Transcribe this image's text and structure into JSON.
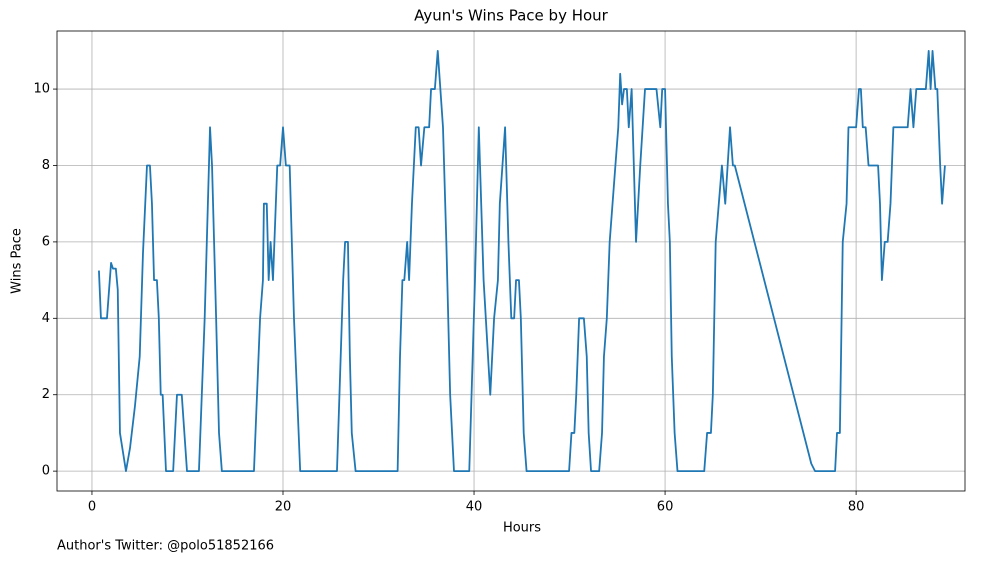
{
  "chart_data": {
    "type": "line",
    "title": "Ayun's Wins Pace by Hour",
    "xlabel": "Hours",
    "ylabel": "Wins Pace",
    "annotation": "Author's Twitter: @polo51852166",
    "color": "#1f77b4",
    "grid": true,
    "xlim": [
      -3.66,
      91.4
    ],
    "ylim": [
      -0.52,
      11.52
    ],
    "xticks": [
      0,
      20,
      40,
      60,
      80
    ],
    "yticks": [
      0,
      2,
      4,
      6,
      8,
      10
    ],
    "x": [
      0.73,
      0.94,
      1.57,
      2.0,
      2.2,
      2.5,
      2.7,
      2.93,
      3.56,
      3.98,
      4.5,
      5.0,
      5.34,
      5.76,
      6.07,
      6.28,
      6.5,
      6.8,
      7.0,
      7.2,
      7.4,
      7.75,
      8.5,
      8.9,
      9.4,
      9.95,
      11.2,
      11.8,
      12.36,
      12.57,
      13.0,
      13.3,
      13.6,
      16.96,
      17.6,
      17.9,
      18.0,
      18.3,
      18.5,
      18.7,
      18.95,
      19.4,
      19.7,
      20.0,
      20.3,
      20.7,
      21.15,
      21.8,
      25.65,
      26.3,
      26.5,
      26.8,
      27.0,
      27.2,
      27.6,
      32.0,
      32.25,
      32.5,
      32.7,
      33.0,
      33.2,
      33.5,
      33.7,
      33.9,
      34.2,
      34.45,
      34.8,
      35.3,
      35.5,
      35.9,
      36.2,
      36.75,
      37.1,
      37.5,
      37.9,
      39.5,
      40.1,
      40.5,
      41.0,
      41.7,
      42.1,
      42.5,
      42.7,
      43.25,
      43.6,
      43.9,
      44.2,
      44.4,
      44.7,
      44.9,
      45.2,
      45.5,
      49.95,
      50.2,
      50.5,
      50.7,
      51.0,
      51.5,
      51.8,
      52.0,
      52.25,
      53.1,
      53.4,
      53.6,
      53.9,
      54.2,
      54.8,
      55.1,
      55.3,
      55.5,
      55.7,
      56.0,
      56.2,
      56.5,
      56.96,
      57.4,
      57.9,
      59.1,
      59.5,
      59.7,
      60.0,
      60.3,
      60.5,
      60.7,
      61.0,
      61.3,
      64.1,
      64.4,
      64.8,
      65.0,
      65.3,
      65.95,
      66.3,
      66.8,
      67.1,
      67.3,
      75.1,
      75.3,
      75.7,
      77.8,
      78.0,
      78.3,
      78.6,
      79.0,
      79.2,
      79.5,
      80.0,
      80.3,
      80.5,
      80.7,
      81.0,
      81.3,
      82.3,
      82.5,
      82.7,
      83.0,
      83.3,
      83.6,
      83.9,
      85.4,
      85.7,
      86.0,
      86.3,
      87.3,
      87.6,
      87.8,
      88.0,
      88.3,
      88.5,
      88.8,
      89.0,
      89.3
    ],
    "values": [
      5.25,
      4,
      4,
      5.45,
      5.3,
      5.3,
      4.75,
      1,
      0,
      0.6,
      1.7,
      3,
      5.7,
      8,
      8,
      7,
      5,
      5,
      4,
      2,
      2,
      0,
      0,
      2,
      2,
      0,
      0,
      4,
      9,
      8,
      4,
      1,
      0,
      0,
      4,
      5,
      7,
      7,
      5,
      6,
      5,
      8,
      8,
      9,
      8,
      8,
      4,
      0,
      0,
      5,
      6,
      6,
      3,
      1,
      0,
      0,
      3,
      5,
      5,
      6,
      5,
      7,
      8,
      9,
      9,
      8,
      9,
      9,
      10,
      10,
      11,
      9,
      6,
      2,
      0,
      0,
      5,
      9,
      5,
      2,
      4,
      5,
      7,
      9,
      6,
      4,
      4,
      5,
      5,
      4,
      1,
      0,
      0,
      1,
      1,
      2,
      4,
      4,
      3,
      1,
      0,
      0,
      1,
      3,
      4,
      6,
      8,
      9,
      10.4,
      9.6,
      10,
      10,
      9,
      10,
      6,
      8,
      10,
      10,
      9,
      10,
      10,
      7,
      6,
      3,
      1,
      0,
      0,
      1,
      1,
      2,
      6,
      8,
      7,
      9,
      8,
      8,
      0.4,
      0.2,
      0,
      0,
      1,
      1,
      6,
      7,
      9,
      9,
      9,
      10,
      10,
      9,
      9,
      8,
      8,
      7,
      5,
      6,
      6,
      7,
      9,
      9,
      10,
      9,
      10,
      10,
      11,
      10,
      11,
      10,
      10,
      8,
      7,
      8
    ]
  }
}
